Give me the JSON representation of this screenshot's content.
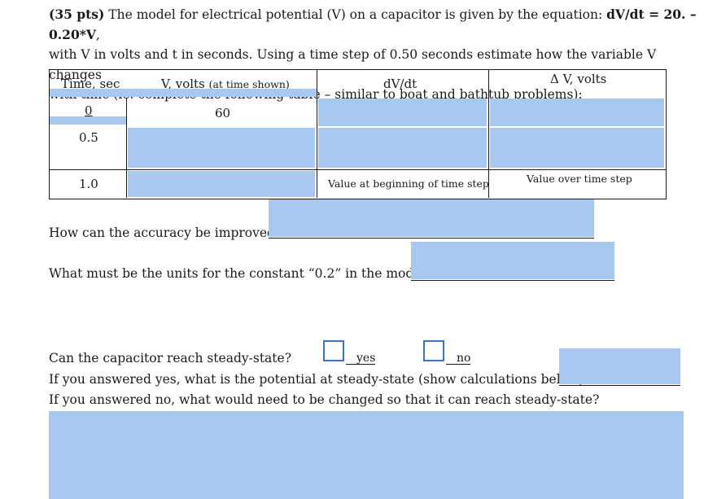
{
  "intro": {
    "points": "(35 pts)",
    "text_1": " The model for electrical potential (V) on a capacitor is given by the equation:  ",
    "equation": "dV/dt = 20. – 0.20*V",
    "text_2": ",",
    "line_2": "with V in volts and t in seconds.  Using a time step of 0.50 seconds estimate how the variable V changes",
    "line_3": "with time (ie. complete the following table – similar to boat and bathtub problems):"
  },
  "table": {
    "headers": {
      "time": "Time, sec",
      "volts": "V, volts",
      "volts_note": "(at time shown)",
      "dvdt": "dV/dt",
      "delta_v": "Δ V, volts"
    },
    "rows": [
      {
        "time": "0",
        "volts": "60"
      },
      {
        "time": "0.5",
        "volts": ""
      },
      {
        "time": "1.0",
        "volts": ""
      }
    ],
    "note_dvdt": "Value at beginning of time step",
    "note_delta": "Value over time step"
  },
  "questions": {
    "accuracy": "How can the accuracy be improved:",
    "units": "What must be the units for the constant “0.2” in the model?",
    "steady": "Can the capacitor reach steady-state?",
    "yes_label": "yes",
    "no_label": "no",
    "if_yes": "If you answered yes, what is the potential at steady-state (show calculations below)?",
    "if_no": "If you answered no, what would need to be changed so that it can reach steady-state?"
  },
  "colors": {
    "answer_fill": "#a8c8f0",
    "checkbox_border": "#3f74b5"
  }
}
